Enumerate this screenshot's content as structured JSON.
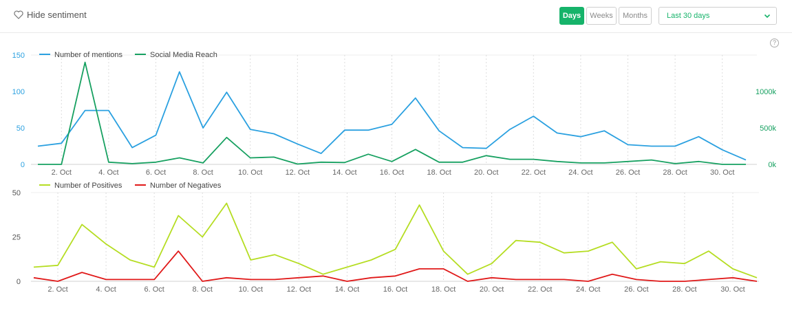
{
  "toolbar": {
    "hide_sentiment_label": "Hide sentiment",
    "granularity": [
      {
        "label": "Days",
        "active": true
      },
      {
        "label": "Weeks",
        "active": false
      },
      {
        "label": "Months",
        "active": false
      }
    ],
    "range_selected": "Last 30 days",
    "help_glyph": "?",
    "accent_color": "#16b36a"
  },
  "chart_data": [
    {
      "type": "line",
      "x": [
        "1. Oct",
        "2. Oct",
        "3. Oct",
        "4. Oct",
        "5. Oct",
        "6. Oct",
        "7. Oct",
        "8. Oct",
        "9. Oct",
        "10. Oct",
        "11. Oct",
        "12. Oct",
        "13. Oct",
        "14. Oct",
        "15. Oct",
        "16. Oct",
        "17. Oct",
        "18. Oct",
        "19. Oct",
        "20. Oct",
        "21. Oct",
        "22. Oct",
        "23. Oct",
        "24. Oct",
        "25. Oct",
        "26. Oct",
        "27. Oct",
        "28. Oct",
        "29. Oct",
        "30. Oct",
        "31. Oct"
      ],
      "x_tick_labels": [
        "2. Oct",
        "4. Oct",
        "6. Oct",
        "8. Oct",
        "10. Oct",
        "12. Oct",
        "14. Oct",
        "16. Oct",
        "18. Oct",
        "20. Oct",
        "22. Oct",
        "24. Oct",
        "26. Oct",
        "28. Oct",
        "30. Oct"
      ],
      "legend_placement": "top-left",
      "series": [
        {
          "name": "Number of mentions",
          "color": "#2aa0e0",
          "axis": "left",
          "values": [
            25,
            29,
            74,
            74,
            23,
            40,
            127,
            50,
            99,
            48,
            42,
            28,
            15,
            47,
            47,
            55,
            91,
            46,
            23,
            22,
            48,
            66,
            43,
            38,
            46,
            27,
            25,
            25,
            38,
            20,
            6
          ]
        },
        {
          "name": "Social Media Reach",
          "color": "#16a060",
          "axis": "right",
          "values": [
            0,
            0,
            1400000,
            30000,
            10000,
            30000,
            90000,
            20000,
            370000,
            90000,
            100000,
            5000,
            30000,
            25000,
            140000,
            40000,
            205000,
            30000,
            30000,
            120000,
            70000,
            70000,
            40000,
            20000,
            20000,
            40000,
            60000,
            10000,
            40000,
            0,
            0
          ]
        }
      ],
      "y_left": {
        "ticks": [
          "0",
          "50",
          "100",
          "150"
        ],
        "lim": [
          0,
          150
        ]
      },
      "y_right": {
        "ticks": [
          "0k",
          "500k",
          "1000k"
        ],
        "lim": [
          0,
          1500000
        ]
      },
      "grid": "vertical dotted"
    },
    {
      "type": "line",
      "x": [
        "1. Oct",
        "2. Oct",
        "3. Oct",
        "4. Oct",
        "5. Oct",
        "6. Oct",
        "7. Oct",
        "8. Oct",
        "9. Oct",
        "10. Oct",
        "11. Oct",
        "12. Oct",
        "13. Oct",
        "14. Oct",
        "15. Oct",
        "16. Oct",
        "17. Oct",
        "18. Oct",
        "19. Oct",
        "20. Oct",
        "21. Oct",
        "22. Oct",
        "23. Oct",
        "24. Oct",
        "25. Oct",
        "26. Oct",
        "27. Oct",
        "28. Oct",
        "29. Oct",
        "30. Oct",
        "31. Oct"
      ],
      "x_tick_labels": [
        "2. Oct",
        "4. Oct",
        "6. Oct",
        "8. Oct",
        "10. Oct",
        "12. Oct",
        "14. Oct",
        "16. Oct",
        "18. Oct",
        "20. Oct",
        "22. Oct",
        "24. Oct",
        "26. Oct",
        "28. Oct",
        "30. Oct"
      ],
      "legend_placement": "top-left",
      "series": [
        {
          "name": "Number of Positives",
          "color": "#b5dd22",
          "values": [
            8,
            9,
            32,
            21,
            12,
            8,
            37,
            25,
            44,
            12,
            15,
            10,
            4,
            8,
            12,
            18,
            43,
            17,
            4,
            10,
            23,
            22,
            16,
            17,
            22,
            7,
            11,
            10,
            17,
            7,
            2
          ]
        },
        {
          "name": "Number of Negatives",
          "color": "#e01818",
          "values": [
            2,
            0,
            5,
            1,
            1,
            1,
            17,
            0,
            2,
            1,
            1,
            2,
            3,
            0,
            2,
            3,
            7,
            7,
            0,
            2,
            1,
            1,
            1,
            0,
            4,
            1,
            0,
            0,
            1,
            2,
            0
          ]
        }
      ],
      "y_left": {
        "ticks": [
          "0",
          "25",
          "50"
        ],
        "lim": [
          0,
          50
        ]
      },
      "grid": "vertical dotted"
    }
  ]
}
